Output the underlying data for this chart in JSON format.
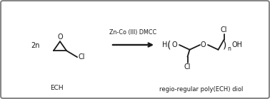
{
  "background_color": "#ffffff",
  "border_color": "#888888",
  "border_linewidth": 1.5,
  "fig_width": 3.78,
  "fig_height": 1.39,
  "dpi": 100,
  "label_2n": "2n",
  "label_ech": "ECH",
  "arrow_label": "Zn-Co (III) DMCC",
  "label_product": "regio-regular poly(ECH) diol",
  "text_color": "#1a1a1a",
  "line_color": "#1a1a1a",
  "font_size_main": 7.0,
  "font_size_small": 6.0,
  "font_size_label": 6.5
}
